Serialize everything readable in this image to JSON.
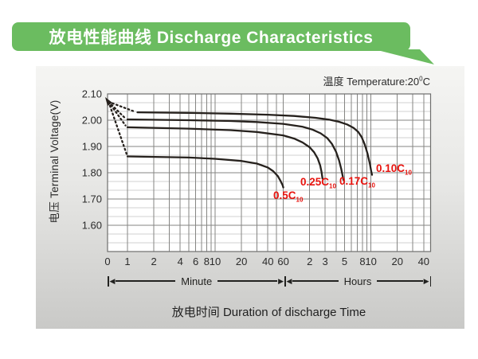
{
  "header": {
    "title": "放电性能曲线 Discharge Characteristics"
  },
  "colors": {
    "banner_green": "#6bbc60",
    "curve": "#26211d",
    "series_label_red": "#e8130e",
    "grid_major": "#858583",
    "grid_minor": "#d2d2d0",
    "plot_border": "#6f6f6d",
    "text_dark": "#2b2b2b"
  },
  "chart_data": {
    "type": "line",
    "title": "放电性能曲线 Discharge Characteristics",
    "xlabel": "放电时间  Duration of discharge Time",
    "ylabel": "电压 Terminal Voltage(V)",
    "temperature_label": {
      "prefix": "温度 ",
      "text": "Temperature:20",
      "sup": "0",
      "unit": "C"
    },
    "x_scale": "logarithmic-time (minutes), dual unit axis",
    "x_unit_segments": [
      {
        "label": "Minute"
      },
      {
        "label": "Hours"
      }
    ],
    "ylim": [
      1.5,
      2.1
    ],
    "grid": "on",
    "y_ticks": [
      {
        "v": 2.1,
        "label": "2.10"
      },
      {
        "v": 2.0,
        "label": "2.00"
      },
      {
        "v": 1.9,
        "label": "1.90"
      },
      {
        "v": 1.8,
        "label": "1.80"
      },
      {
        "v": 1.7,
        "label": "1.70"
      },
      {
        "v": 1.6,
        "label": "1.60"
      }
    ],
    "y_grid_major": [
      2.0,
      1.9,
      1.8,
      1.7,
      1.6
    ],
    "x_ticks": [
      {
        "t": 0,
        "label": "0"
      },
      {
        "t": 1,
        "label": "1"
      },
      {
        "t": 2,
        "label": "2"
      },
      {
        "t": 4,
        "label": "4"
      },
      {
        "t": 6,
        "label": "6"
      },
      {
        "t": 8,
        "label": "8"
      },
      {
        "t": 10,
        "label": "10"
      },
      {
        "t": 20,
        "label": "20"
      },
      {
        "t": 40,
        "label": "40"
      },
      {
        "t": 60,
        "label": "60"
      },
      {
        "t": 120,
        "label": "2"
      },
      {
        "t": 180,
        "label": "3"
      },
      {
        "t": 300,
        "label": "5"
      },
      {
        "t": 480,
        "label": "8"
      },
      {
        "t": 600,
        "label": "10"
      },
      {
        "t": 1200,
        "label": "20"
      },
      {
        "t": 2400,
        "label": "40"
      }
    ],
    "grid_minutes": [
      1,
      2,
      3,
      4,
      5,
      6,
      7,
      8,
      9,
      10,
      20,
      30,
      40,
      50,
      60,
      120,
      180,
      240,
      300,
      360,
      420,
      480,
      540,
      600,
      1200,
      1800,
      2400
    ],
    "series": [
      {
        "name": "0.5C10",
        "label_main": "0.5C",
        "label_sub": "10",
        "dotted": [
          [
            0.05,
            2.07
          ],
          [
            0.95,
            1.872
          ]
        ],
        "points": [
          [
            1,
            1.862
          ],
          [
            5,
            1.858
          ],
          [
            10,
            1.853
          ],
          [
            20,
            1.845
          ],
          [
            30,
            1.835
          ],
          [
            40,
            1.82
          ],
          [
            46,
            1.806
          ],
          [
            52,
            1.787
          ],
          [
            56,
            1.768
          ],
          [
            59,
            1.752
          ],
          [
            60,
            1.744
          ]
        ]
      },
      {
        "name": "0.25C10",
        "label_main": "0.25C",
        "label_sub": "10",
        "dotted": [
          [
            0.05,
            2.07
          ],
          [
            0.9,
            1.98
          ]
        ],
        "points": [
          [
            1,
            1.973
          ],
          [
            5,
            1.968
          ],
          [
            15,
            1.962
          ],
          [
            30,
            1.955
          ],
          [
            60,
            1.942
          ],
          [
            80,
            1.93
          ],
          [
            100,
            1.915
          ],
          [
            120,
            1.897
          ],
          [
            135,
            1.878
          ],
          [
            148,
            1.855
          ],
          [
            158,
            1.828
          ],
          [
            164,
            1.803
          ],
          [
            168,
            1.778
          ]
        ]
      },
      {
        "name": "0.17C10",
        "label_main": "0.17C",
        "label_sub": "10",
        "dotted": [
          [
            0.05,
            2.07
          ],
          [
            0.85,
            2.01
          ]
        ],
        "points": [
          [
            1,
            2.003
          ],
          [
            5,
            2.0
          ],
          [
            15,
            1.997
          ],
          [
            30,
            1.993
          ],
          [
            60,
            1.986
          ],
          [
            100,
            1.975
          ],
          [
            130,
            1.964
          ],
          [
            160,
            1.95
          ],
          [
            190,
            1.932
          ],
          [
            215,
            1.91
          ],
          [
            240,
            1.88
          ],
          [
            260,
            1.847
          ],
          [
            275,
            1.815
          ],
          [
            285,
            1.79
          ],
          [
            292,
            1.772
          ]
        ]
      },
      {
        "name": "0.10C10",
        "label_main": "0.10C",
        "label_sub": "10",
        "dotted": [
          [
            0.05,
            2.07
          ],
          [
            1.2,
            2.033
          ]
        ],
        "points": [
          [
            1.3,
            2.03
          ],
          [
            5,
            2.028
          ],
          [
            15,
            2.025
          ],
          [
            40,
            2.021
          ],
          [
            80,
            2.016
          ],
          [
            140,
            2.009
          ],
          [
            200,
            2.002
          ],
          [
            260,
            1.994
          ],
          [
            320,
            1.984
          ],
          [
            380,
            1.971
          ],
          [
            430,
            1.955
          ],
          [
            470,
            1.936
          ],
          [
            510,
            1.908
          ],
          [
            550,
            1.872
          ],
          [
            585,
            1.832
          ],
          [
            605,
            1.805
          ],
          [
            618,
            1.792
          ]
        ]
      }
    ]
  }
}
